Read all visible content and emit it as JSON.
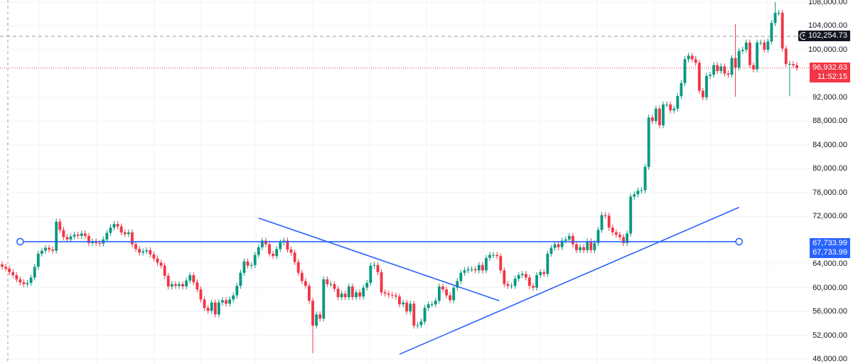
{
  "chart_data": {
    "type": "candlestick",
    "title": "",
    "ylim": [
      48000,
      108000
    ],
    "y_ticks": [
      "108,000.00",
      "104,000.00",
      "100,000.00",
      "92,000.00",
      "88,000.00",
      "84,000.00",
      "80,000.00",
      "76,000.00",
      "72,000.00",
      "64,000.00",
      "60,000.00",
      "56,000.00",
      "52,000.00",
      "48,000.00"
    ],
    "y_tick_values": [
      108000,
      104000,
      100000,
      92000,
      88000,
      84000,
      80000,
      76000,
      72000,
      64000,
      60000,
      56000,
      52000,
      48000
    ],
    "close_thousands": [
      63.5,
      63.2,
      62.6,
      62.1,
      61.4,
      60.9,
      60.6,
      60.8,
      61.7,
      63.5,
      65.7,
      66.2,
      66.7,
      66.4,
      66.2,
      71.1,
      69.7,
      68.5,
      68.1,
      68.6,
      68.9,
      68.7,
      69.1,
      68.7,
      67.5,
      67.8,
      67.5,
      67.4,
      68.1,
      69.2,
      70.1,
      70.7,
      70.3,
      69.3,
      69.0,
      69.3,
      67.3,
      66.5,
      65.9,
      66.1,
      66.3,
      65.6,
      64.9,
      64.2,
      63.7,
      62.0,
      60.2,
      60.6,
      60.3,
      60.6,
      60.2,
      61.2,
      62.1,
      60.9,
      59.7,
      58.0,
      56.6,
      56.1,
      57.5,
      55.5,
      57.5,
      57.9,
      57.3,
      58.0,
      58.7,
      60.3,
      62.5,
      64.4,
      63.7,
      63.8,
      65.5,
      66.8,
      67.9,
      67.3,
      65.7,
      65.3,
      66.5,
      67.6,
      67.9,
      66.4,
      65.9,
      64.3,
      62.5,
      61.1,
      60.3,
      57.8,
      53.6,
      55.5,
      54.8,
      61.4,
      60.6,
      60.6,
      59.8,
      58.4,
      59.0,
      58.4,
      60.2,
      58.4,
      59.2,
      58.5,
      60.0,
      60.8,
      63.7,
      63.8,
      62.6,
      59.2,
      59.0,
      58.8,
      58.7,
      58.5,
      57.2,
      57.5,
      56.0,
      57.3,
      53.6,
      53.7,
      54.3,
      56.6,
      57.2,
      57.2,
      57.8,
      60.2,
      59.7,
      58.7,
      57.9,
      60.0,
      61.1,
      62.5,
      62.9,
      63.1,
      63.1,
      62.9,
      63.8,
      62.9,
      65.0,
      65.5,
      65.5,
      65.3,
      62.9,
      60.6,
      60.3,
      60.3,
      61.5,
      62.1,
      62.3,
      61.7,
      60.3,
      60.0,
      62.1,
      62.6,
      62.3,
      65.7,
      66.7,
      67.3,
      66.8,
      67.9,
      68.1,
      68.7,
      67.3,
      66.3,
      66.8,
      66.3,
      67.8,
      66.3,
      67.5,
      69.7,
      72.2,
      72.1,
      70.1,
      69.3,
      68.9,
      68.5,
      67.5,
      69.1,
      75.3,
      75.7,
      76.3,
      76.4,
      80.3,
      88.6,
      88.0,
      90.1,
      87.3,
      90.8,
      90.8,
      89.8,
      90.1,
      92.2,
      94.4,
      98.4,
      99.0,
      98.4,
      97.8,
      93.1,
      92.0,
      95.6,
      95.8,
      97.4,
      96.4,
      97.2,
      96.0,
      95.8,
      98.6,
      97.0,
      99.8,
      100.0,
      101.2,
      97.4,
      96.7,
      101.2,
      101.2,
      100.0,
      101.4,
      104.5,
      106.2,
      106.2,
      100.2,
      97.6,
      97.6,
      97.4,
      96.93
    ],
    "default_wick_thousands": 0.5,
    "wick_overrides": [
      {
        "index": 86,
        "low": 49.0
      },
      {
        "index": 203,
        "high": 104.3,
        "low": 92.1
      },
      {
        "index": 214,
        "high": 108.0
      },
      {
        "index": 218,
        "low": 92.2
      }
    ],
    "colors": {
      "up": "#089981",
      "down": "#f23645",
      "drawing": "#2962ff",
      "grid": "#f0f3fa"
    },
    "drawings": {
      "horizontal_line": {
        "price": 67733.99,
        "from_index": 5,
        "to_index": 204
      },
      "descending_trendline": {
        "from": [
          71,
          71700
        ],
        "to": [
          137.6,
          57800
        ]
      },
      "ascending_trendline": {
        "from": [
          110,
          48800
        ],
        "to": [
          204,
          73500
        ]
      }
    },
    "price_lines": {
      "crosshair_price": 102254.73,
      "last_price": 96932.63
    }
  },
  "labels": {
    "crosshair_price": "102,254.73",
    "last_price": "96,932.63",
    "countdown": "11:52:15",
    "line_price_1": "67,733.99",
    "line_price_2": "67,733.99"
  }
}
